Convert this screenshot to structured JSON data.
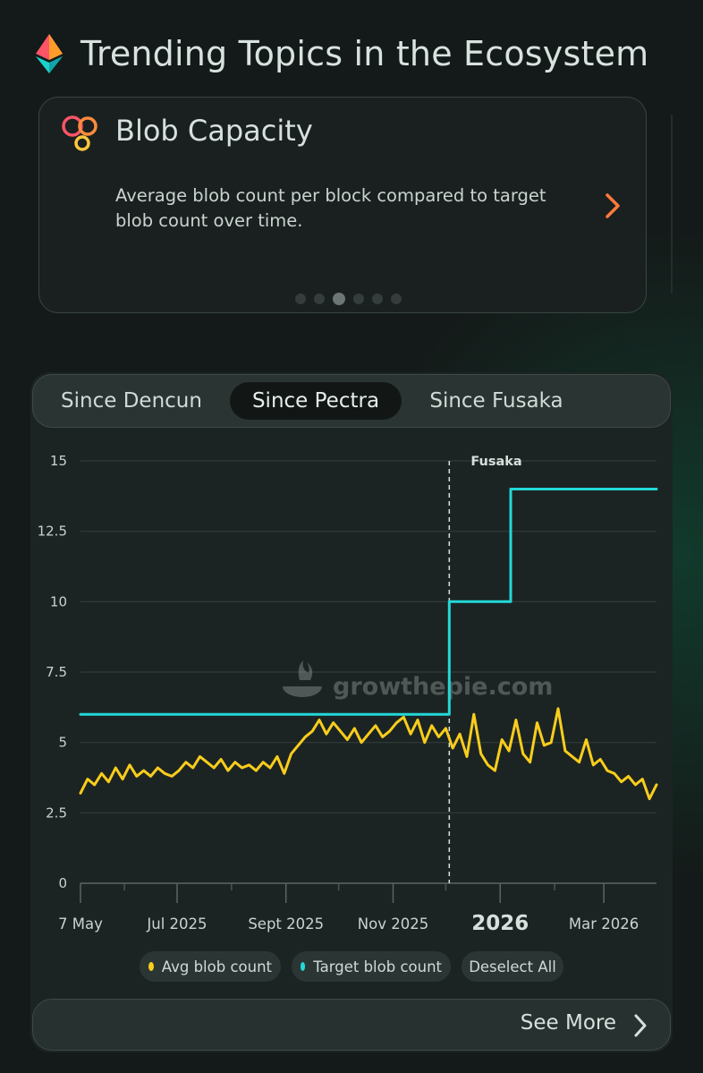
{
  "header": {
    "title": "Trending Topics in the Ecosystem",
    "icon": "ethereum-icon"
  },
  "card": {
    "title": "Blob Capacity",
    "description": "Average blob count per block compared to target blob count over time.",
    "icon": "blobs-icon",
    "pagination": {
      "count": 6,
      "active_index": 2
    }
  },
  "tabs": [
    "Since Dencun",
    "Since Pectra",
    "Since Fusaka"
  ],
  "active_tab": "Since Pectra",
  "watermark": "growthepie.com",
  "legend": {
    "avg": "Avg blob count",
    "target": "Target blob count",
    "deselect": "Deselect All"
  },
  "see_more": "See More",
  "colors": {
    "avg": "#f8cd1c",
    "target": "#23d8d8",
    "accent_orange": "#fe5468",
    "background": "#161b1a"
  },
  "chart_data": {
    "type": "line",
    "x_axis": {
      "min": "2025-05-07",
      "max": "2026-03-31",
      "ticks": [
        "7 May",
        "Jul 2025",
        "Sept 2025",
        "Nov 2025",
        "2026",
        "Mar 2026"
      ]
    },
    "y_axis": {
      "min": 0,
      "max": 15,
      "ticks": [
        "0",
        "2.5",
        "5",
        "7.5",
        "10",
        "12.5",
        "15"
      ]
    },
    "grid": true,
    "annotation": {
      "label": "Fusaka",
      "date": "2025-12-03"
    },
    "series": [
      {
        "name": "Target blob count",
        "color": "#23d8d8",
        "points": [
          [
            "2025-05-07",
            6
          ],
          [
            "2025-12-03",
            6
          ],
          [
            "2025-12-03",
            10
          ],
          [
            "2026-01-07",
            10
          ],
          [
            "2026-01-07",
            14
          ],
          [
            "2026-03-31",
            14
          ]
        ]
      },
      {
        "name": "Avg blob count",
        "color": "#f8cd1c",
        "points": [
          [
            "2025-05-07",
            3.2
          ],
          [
            "2025-05-11",
            3.7
          ],
          [
            "2025-05-15",
            3.5
          ],
          [
            "2025-05-19",
            3.9
          ],
          [
            "2025-05-23",
            3.6
          ],
          [
            "2025-05-27",
            4.1
          ],
          [
            "2025-05-31",
            3.7
          ],
          [
            "2025-06-04",
            4.2
          ],
          [
            "2025-06-08",
            3.8
          ],
          [
            "2025-06-12",
            4.0
          ],
          [
            "2025-06-16",
            3.8
          ],
          [
            "2025-06-20",
            4.1
          ],
          [
            "2025-06-24",
            3.9
          ],
          [
            "2025-06-28",
            3.8
          ],
          [
            "2025-07-02",
            4.0
          ],
          [
            "2025-07-06",
            4.3
          ],
          [
            "2025-07-10",
            4.1
          ],
          [
            "2025-07-14",
            4.5
          ],
          [
            "2025-07-18",
            4.3
          ],
          [
            "2025-07-22",
            4.1
          ],
          [
            "2025-07-26",
            4.4
          ],
          [
            "2025-07-30",
            4.0
          ],
          [
            "2025-08-03",
            4.3
          ],
          [
            "2025-08-07",
            4.1
          ],
          [
            "2025-08-11",
            4.2
          ],
          [
            "2025-08-15",
            4.0
          ],
          [
            "2025-08-19",
            4.3
          ],
          [
            "2025-08-23",
            4.1
          ],
          [
            "2025-08-27",
            4.5
          ],
          [
            "2025-08-31",
            3.9
          ],
          [
            "2025-09-04",
            4.6
          ],
          [
            "2025-09-08",
            4.9
          ],
          [
            "2025-09-12",
            5.2
          ],
          [
            "2025-09-16",
            5.4
          ],
          [
            "2025-09-20",
            5.8
          ],
          [
            "2025-09-24",
            5.3
          ],
          [
            "2025-09-28",
            5.7
          ],
          [
            "2025-10-02",
            5.4
          ],
          [
            "2025-10-06",
            5.1
          ],
          [
            "2025-10-10",
            5.5
          ],
          [
            "2025-10-14",
            5.0
          ],
          [
            "2025-10-18",
            5.3
          ],
          [
            "2025-10-22",
            5.6
          ],
          [
            "2025-10-26",
            5.2
          ],
          [
            "2025-10-30",
            5.4
          ],
          [
            "2025-11-03",
            5.7
          ],
          [
            "2025-11-07",
            5.9
          ],
          [
            "2025-11-11",
            5.3
          ],
          [
            "2025-11-15",
            5.8
          ],
          [
            "2025-11-19",
            5.0
          ],
          [
            "2025-11-23",
            5.6
          ],
          [
            "2025-11-27",
            5.2
          ],
          [
            "2025-12-01",
            5.5
          ],
          [
            "2025-12-05",
            4.8
          ],
          [
            "2025-12-09",
            5.3
          ],
          [
            "2025-12-13",
            4.5
          ],
          [
            "2025-12-17",
            6.0
          ],
          [
            "2025-12-21",
            4.6
          ],
          [
            "2025-12-25",
            4.2
          ],
          [
            "2025-12-29",
            4.0
          ],
          [
            "2026-01-02",
            5.1
          ],
          [
            "2026-01-06",
            4.7
          ],
          [
            "2026-01-10",
            5.8
          ],
          [
            "2026-01-14",
            4.6
          ],
          [
            "2026-01-18",
            4.3
          ],
          [
            "2026-01-22",
            5.7
          ],
          [
            "2026-01-26",
            4.9
          ],
          [
            "2026-01-30",
            5.0
          ],
          [
            "2026-02-03",
            6.2
          ],
          [
            "2026-02-07",
            4.7
          ],
          [
            "2026-02-11",
            4.5
          ],
          [
            "2026-02-15",
            4.3
          ],
          [
            "2026-02-19",
            5.1
          ],
          [
            "2026-02-23",
            4.2
          ],
          [
            "2026-02-27",
            4.4
          ],
          [
            "2026-03-03",
            4.0
          ],
          [
            "2026-03-07",
            3.9
          ],
          [
            "2026-03-11",
            3.6
          ],
          [
            "2026-03-15",
            3.8
          ],
          [
            "2026-03-19",
            3.5
          ],
          [
            "2026-03-23",
            3.7
          ],
          [
            "2026-03-27",
            3.0
          ],
          [
            "2026-03-31",
            3.5
          ]
        ]
      }
    ]
  }
}
